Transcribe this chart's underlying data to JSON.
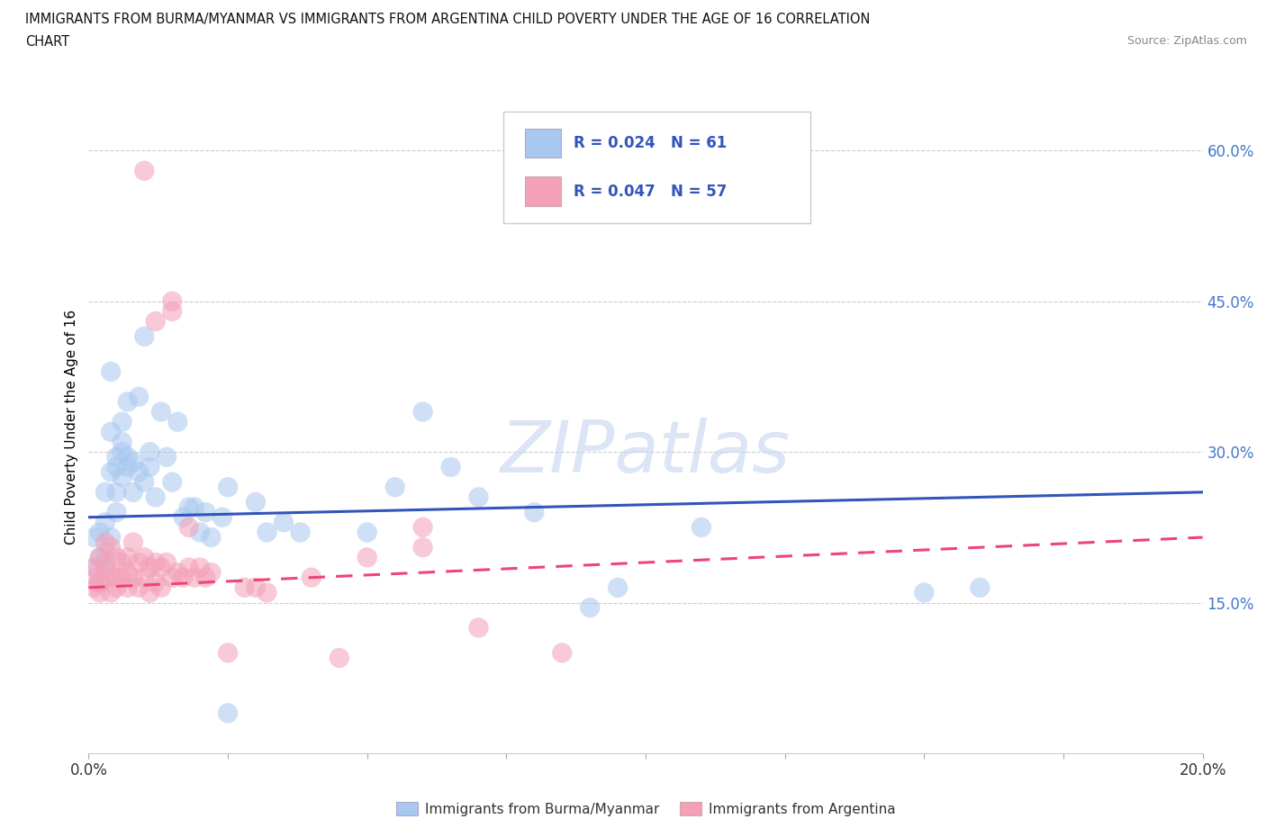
{
  "title_line1": "IMMIGRANTS FROM BURMA/MYANMAR VS IMMIGRANTS FROM ARGENTINA CHILD POVERTY UNDER THE AGE OF 16 CORRELATION",
  "title_line2": "CHART",
  "source": "Source: ZipAtlas.com",
  "ylabel": "Child Poverty Under the Age of 16",
  "burma_color": "#A8C8F0",
  "argentina_color": "#F4A0B8",
  "burma_line_color": "#3355BB",
  "argentina_line_color": "#EE4477",
  "tick_color": "#4477CC",
  "R_burma": 0.024,
  "N_burma": 61,
  "R_argentina": 0.047,
  "N_argentina": 57,
  "watermark": "ZIPatlas",
  "legend_label_burma": "Immigrants from Burma/Myanmar",
  "legend_label_argentina": "Immigrants from Argentina",
  "xlim": [
    0.0,
    0.2
  ],
  "ylim": [
    0.0,
    0.65
  ],
  "burma_line_y0": 0.235,
  "burma_line_y1": 0.26,
  "arg_line_y0": 0.165,
  "arg_line_y1": 0.215,
  "burma_scatter": [
    [
      0.001,
      0.215
    ],
    [
      0.001,
      0.185
    ],
    [
      0.002,
      0.195
    ],
    [
      0.002,
      0.22
    ],
    [
      0.002,
      0.17
    ],
    [
      0.003,
      0.23
    ],
    [
      0.003,
      0.2
    ],
    [
      0.003,
      0.26
    ],
    [
      0.003,
      0.185
    ],
    [
      0.004,
      0.215
    ],
    [
      0.004,
      0.28
    ],
    [
      0.004,
      0.32
    ],
    [
      0.004,
      0.38
    ],
    [
      0.005,
      0.295
    ],
    [
      0.005,
      0.26
    ],
    [
      0.005,
      0.24
    ],
    [
      0.005,
      0.285
    ],
    [
      0.006,
      0.275
    ],
    [
      0.006,
      0.3
    ],
    [
      0.006,
      0.31
    ],
    [
      0.006,
      0.33
    ],
    [
      0.007,
      0.295
    ],
    [
      0.007,
      0.285
    ],
    [
      0.007,
      0.35
    ],
    [
      0.008,
      0.26
    ],
    [
      0.008,
      0.29
    ],
    [
      0.009,
      0.28
    ],
    [
      0.009,
      0.355
    ],
    [
      0.01,
      0.27
    ],
    [
      0.01,
      0.415
    ],
    [
      0.011,
      0.3
    ],
    [
      0.011,
      0.285
    ],
    [
      0.012,
      0.255
    ],
    [
      0.013,
      0.34
    ],
    [
      0.014,
      0.295
    ],
    [
      0.015,
      0.27
    ],
    [
      0.016,
      0.33
    ],
    [
      0.017,
      0.235
    ],
    [
      0.018,
      0.245
    ],
    [
      0.019,
      0.245
    ],
    [
      0.02,
      0.22
    ],
    [
      0.021,
      0.24
    ],
    [
      0.022,
      0.215
    ],
    [
      0.024,
      0.235
    ],
    [
      0.025,
      0.265
    ],
    [
      0.03,
      0.25
    ],
    [
      0.032,
      0.22
    ],
    [
      0.035,
      0.23
    ],
    [
      0.038,
      0.22
    ],
    [
      0.05,
      0.22
    ],
    [
      0.055,
      0.265
    ],
    [
      0.06,
      0.34
    ],
    [
      0.065,
      0.285
    ],
    [
      0.07,
      0.255
    ],
    [
      0.08,
      0.24
    ],
    [
      0.09,
      0.145
    ],
    [
      0.095,
      0.165
    ],
    [
      0.11,
      0.225
    ],
    [
      0.15,
      0.16
    ],
    [
      0.16,
      0.165
    ],
    [
      0.025,
      0.04
    ]
  ],
  "argentina_scatter": [
    [
      0.001,
      0.185
    ],
    [
      0.001,
      0.165
    ],
    [
      0.001,
      0.175
    ],
    [
      0.002,
      0.195
    ],
    [
      0.002,
      0.17
    ],
    [
      0.002,
      0.16
    ],
    [
      0.003,
      0.21
    ],
    [
      0.003,
      0.19
    ],
    [
      0.003,
      0.18
    ],
    [
      0.004,
      0.205
    ],
    [
      0.004,
      0.175
    ],
    [
      0.004,
      0.16
    ],
    [
      0.005,
      0.195
    ],
    [
      0.005,
      0.175
    ],
    [
      0.005,
      0.165
    ],
    [
      0.006,
      0.19
    ],
    [
      0.006,
      0.175
    ],
    [
      0.007,
      0.195
    ],
    [
      0.007,
      0.18
    ],
    [
      0.007,
      0.165
    ],
    [
      0.008,
      0.21
    ],
    [
      0.008,
      0.175
    ],
    [
      0.009,
      0.19
    ],
    [
      0.009,
      0.165
    ],
    [
      0.01,
      0.195
    ],
    [
      0.01,
      0.175
    ],
    [
      0.011,
      0.185
    ],
    [
      0.011,
      0.16
    ],
    [
      0.012,
      0.19
    ],
    [
      0.012,
      0.17
    ],
    [
      0.013,
      0.185
    ],
    [
      0.013,
      0.165
    ],
    [
      0.014,
      0.19
    ],
    [
      0.015,
      0.175
    ],
    [
      0.016,
      0.18
    ],
    [
      0.017,
      0.175
    ],
    [
      0.018,
      0.185
    ],
    [
      0.019,
      0.175
    ],
    [
      0.02,
      0.185
    ],
    [
      0.021,
      0.175
    ],
    [
      0.022,
      0.18
    ],
    [
      0.025,
      0.1
    ],
    [
      0.028,
      0.165
    ],
    [
      0.03,
      0.165
    ],
    [
      0.032,
      0.16
    ],
    [
      0.04,
      0.175
    ],
    [
      0.045,
      0.095
    ],
    [
      0.05,
      0.195
    ],
    [
      0.06,
      0.205
    ],
    [
      0.07,
      0.125
    ],
    [
      0.085,
      0.1
    ],
    [
      0.01,
      0.58
    ],
    [
      0.012,
      0.43
    ],
    [
      0.015,
      0.44
    ],
    [
      0.015,
      0.45
    ],
    [
      0.018,
      0.225
    ],
    [
      0.06,
      0.225
    ]
  ]
}
